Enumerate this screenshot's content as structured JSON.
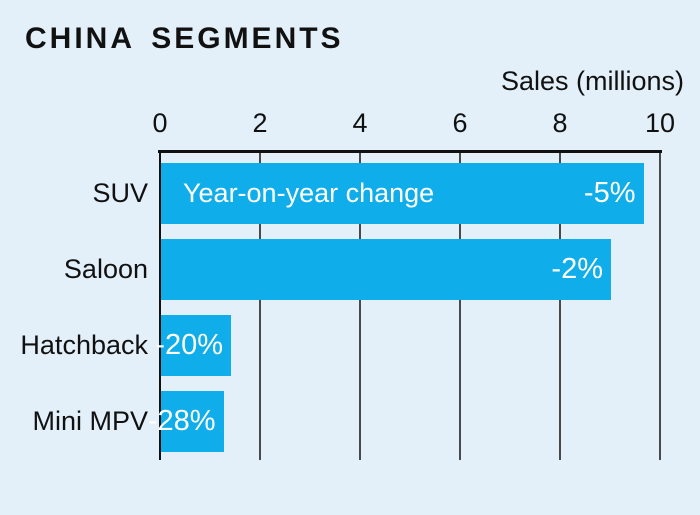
{
  "header": {
    "title": "CHINA SEGMENTS"
  },
  "chart_data": {
    "type": "bar",
    "orientation": "horizontal",
    "title": "CHINA SEGMENTS",
    "xlabel": "Sales (millions)",
    "categories": [
      "SUV",
      "Saloon",
      "Hatchback",
      "Mini MPV"
    ],
    "values": [
      9.65,
      9.0,
      1.4,
      1.25
    ],
    "bar_labels": [
      "-5%",
      "-2%",
      "-20%",
      "-28%"
    ],
    "annotation": {
      "text": "Year-on-year change",
      "row_index": 0
    },
    "xlim": [
      0,
      10
    ],
    "ticks": [
      0,
      2,
      4,
      6,
      8,
      10
    ],
    "grid": true,
    "legend_position": "none",
    "colors": {
      "background": "#e3f0f9",
      "bar": "#0fade9",
      "gridline": "#47494b",
      "axis": "#111111",
      "text": "#111111",
      "bar_text": "#ffffff"
    }
  }
}
